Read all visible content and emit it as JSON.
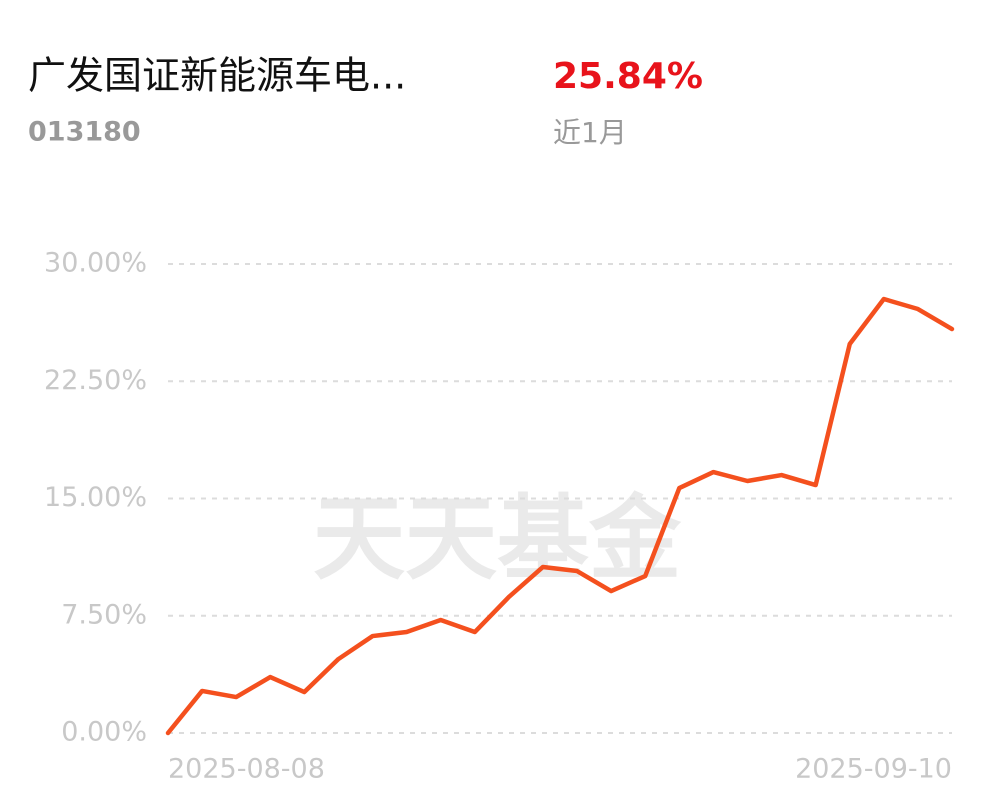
{
  "header": {
    "fund_name": "广发国证新能源车电...",
    "fund_code": "013180",
    "return": "25.84%",
    "period": "近1月"
  },
  "chart_data": {
    "type": "line",
    "watermark": "天天基金",
    "categories": [
      "2025-08-08",
      null,
      null,
      null,
      null,
      null,
      null,
      null,
      null,
      null,
      null,
      null,
      null,
      null,
      null,
      null,
      null,
      null,
      null,
      null,
      null,
      null,
      null,
      "2025-09-10"
    ],
    "values": [
      0,
      2.69,
      2.3,
      3.58,
      2.62,
      4.73,
      6.2,
      6.46,
      7.23,
      6.46,
      8.7,
      10.62,
      10.36,
      9.08,
      10.04,
      15.67,
      16.69,
      16.12,
      16.5,
      15.86,
      24.88,
      27.76,
      27.12,
      25.84
    ],
    "color": "#f4501e",
    "ylim": [
      0,
      30
    ],
    "yticks": [
      {
        "value": 0,
        "label": "0.00%"
      },
      {
        "value": 7.5,
        "label": "7.50%"
      },
      {
        "value": 15,
        "label": "15.00%"
      },
      {
        "value": 22.5,
        "label": "22.50%"
      },
      {
        "value": 30,
        "label": "30.00%"
      }
    ],
    "grid": true
  }
}
